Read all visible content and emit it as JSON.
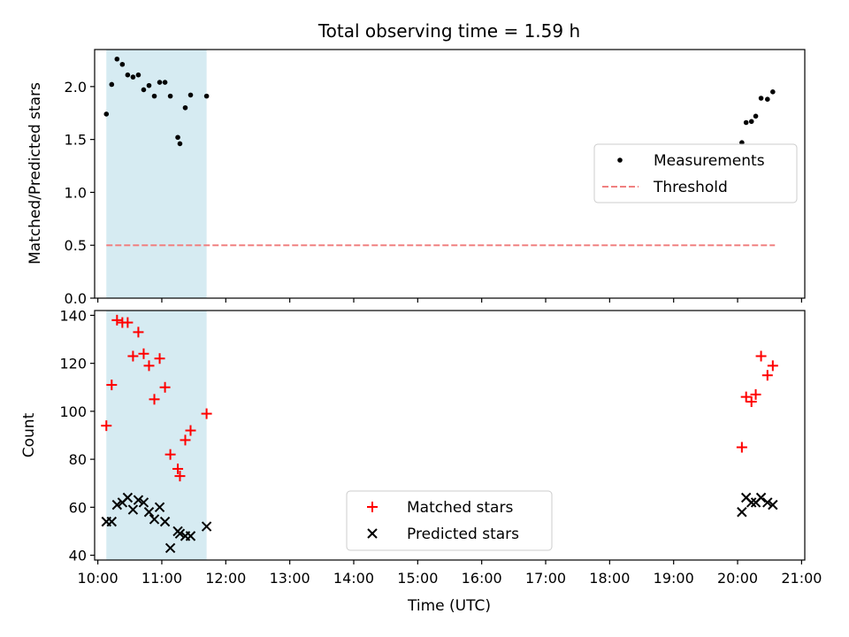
{
  "title": "Total observing time = 1.59 h",
  "x_axis": {
    "label": "Time (UTC)",
    "ticks": [
      "10:00",
      "11:00",
      "12:00",
      "13:00",
      "14:00",
      "15:00",
      "16:00",
      "17:00",
      "18:00",
      "19:00",
      "20:00",
      "21:00"
    ]
  },
  "colors": {
    "measurement": "#000000",
    "threshold": "#f08080",
    "matched": "#ff0000",
    "predicted": "#000000",
    "span": "#add8e6"
  },
  "chart_data": [
    {
      "type": "scatter",
      "ylabel": "Matched/Predicted stars",
      "ylim": [
        0,
        2.35
      ],
      "xlim": [
        "09:57",
        "21:03"
      ],
      "yticks": [
        "0.0",
        "0.5",
        "1.0",
        "1.5",
        "2.0"
      ],
      "shaded_span": {
        "start": "10:08",
        "end": "11:42"
      },
      "legend": {
        "placement": "center-right",
        "entries": [
          "Measurements",
          "Threshold"
        ]
      },
      "threshold": {
        "name": "Threshold",
        "value": 0.5,
        "x_start": "10:08",
        "x_end": "20:35"
      },
      "series": [
        {
          "name": "Measurements",
          "points": [
            {
              "x": "10:08",
              "y": 1.74
            },
            {
              "x": "10:13",
              "y": 2.02
            },
            {
              "x": "10:18",
              "y": 2.26
            },
            {
              "x": "10:23",
              "y": 2.21
            },
            {
              "x": "10:28",
              "y": 2.11
            },
            {
              "x": "10:33",
              "y": 2.09
            },
            {
              "x": "10:38",
              "y": 2.11
            },
            {
              "x": "10:43",
              "y": 1.97
            },
            {
              "x": "10:48",
              "y": 2.01
            },
            {
              "x": "10:53",
              "y": 1.91
            },
            {
              "x": "10:58",
              "y": 2.04
            },
            {
              "x": "11:03",
              "y": 2.04
            },
            {
              "x": "11:08",
              "y": 1.91
            },
            {
              "x": "11:15",
              "y": 1.52
            },
            {
              "x": "11:17",
              "y": 1.46
            },
            {
              "x": "11:22",
              "y": 1.8
            },
            {
              "x": "11:27",
              "y": 1.92
            },
            {
              "x": "11:42",
              "y": 1.91
            },
            {
              "x": "20:04",
              "y": 1.47
            },
            {
              "x": "20:08",
              "y": 1.66
            },
            {
              "x": "20:13",
              "y": 1.67
            },
            {
              "x": "20:17",
              "y": 1.72
            },
            {
              "x": "20:22",
              "y": 1.89
            },
            {
              "x": "20:28",
              "y": 1.88
            },
            {
              "x": "20:33",
              "y": 1.95
            }
          ]
        }
      ]
    },
    {
      "type": "scatter",
      "ylabel": "Count",
      "ylim": [
        38,
        142
      ],
      "xlim": [
        "09:57",
        "21:03"
      ],
      "yticks": [
        "40",
        "60",
        "80",
        "100",
        "120",
        "140"
      ],
      "shaded_span": {
        "start": "10:08",
        "end": "11:42"
      },
      "legend": {
        "placement": "lower-center",
        "entries": [
          "Matched stars",
          "Predicted stars"
        ]
      },
      "series": [
        {
          "name": "Matched stars",
          "marker": "+",
          "points": [
            {
              "x": "10:08",
              "y": 94
            },
            {
              "x": "10:13",
              "y": 111
            },
            {
              "x": "10:18",
              "y": 138
            },
            {
              "x": "10:23",
              "y": 137
            },
            {
              "x": "10:28",
              "y": 137
            },
            {
              "x": "10:33",
              "y": 123
            },
            {
              "x": "10:38",
              "y": 133
            },
            {
              "x": "10:43",
              "y": 124
            },
            {
              "x": "10:48",
              "y": 119
            },
            {
              "x": "10:53",
              "y": 105
            },
            {
              "x": "10:58",
              "y": 122
            },
            {
              "x": "11:03",
              "y": 110
            },
            {
              "x": "11:08",
              "y": 82
            },
            {
              "x": "11:15",
              "y": 76
            },
            {
              "x": "11:17",
              "y": 73
            },
            {
              "x": "11:22",
              "y": 88
            },
            {
              "x": "11:27",
              "y": 92
            },
            {
              "x": "11:42",
              "y": 99
            },
            {
              "x": "20:04",
              "y": 85
            },
            {
              "x": "20:08",
              "y": 106
            },
            {
              "x": "20:13",
              "y": 104
            },
            {
              "x": "20:17",
              "y": 107
            },
            {
              "x": "20:22",
              "y": 123
            },
            {
              "x": "20:28",
              "y": 115
            },
            {
              "x": "20:33",
              "y": 119
            }
          ]
        },
        {
          "name": "Predicted stars",
          "marker": "x",
          "points": [
            {
              "x": "10:08",
              "y": 54
            },
            {
              "x": "10:13",
              "y": 54
            },
            {
              "x": "10:18",
              "y": 61
            },
            {
              "x": "10:23",
              "y": 62
            },
            {
              "x": "10:28",
              "y": 64
            },
            {
              "x": "10:33",
              "y": 59
            },
            {
              "x": "10:38",
              "y": 63
            },
            {
              "x": "10:43",
              "y": 62
            },
            {
              "x": "10:48",
              "y": 58
            },
            {
              "x": "10:53",
              "y": 55
            },
            {
              "x": "10:58",
              "y": 60
            },
            {
              "x": "11:03",
              "y": 54
            },
            {
              "x": "11:08",
              "y": 43
            },
            {
              "x": "11:15",
              "y": 50
            },
            {
              "x": "11:17",
              "y": 49
            },
            {
              "x": "11:22",
              "y": 48
            },
            {
              "x": "11:27",
              "y": 48
            },
            {
              "x": "11:42",
              "y": 52
            },
            {
              "x": "20:04",
              "y": 58
            },
            {
              "x": "20:08",
              "y": 64
            },
            {
              "x": "20:13",
              "y": 62
            },
            {
              "x": "20:17",
              "y": 62
            },
            {
              "x": "20:22",
              "y": 64
            },
            {
              "x": "20:28",
              "y": 62
            },
            {
              "x": "20:33",
              "y": 61
            }
          ]
        }
      ]
    }
  ]
}
